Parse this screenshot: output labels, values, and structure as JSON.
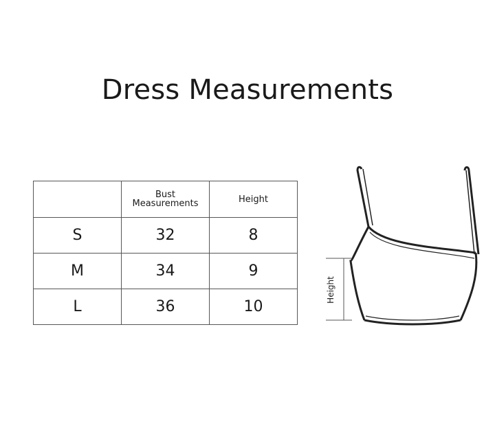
{
  "title": "Dress Measurements",
  "table": {
    "headers": [
      "",
      "Bust\nMeasurements",
      "Height"
    ],
    "header_bust_line1": "Bust",
    "header_bust_line2": "Measurements",
    "header_height": "Height",
    "rows": [
      {
        "size": "S",
        "bust": "32",
        "height": "8"
      },
      {
        "size": "M",
        "bust": "34",
        "height": "9"
      },
      {
        "size": "L",
        "bust": "36",
        "height": "10"
      }
    ]
  },
  "diagram": {
    "height_label": "Height"
  }
}
